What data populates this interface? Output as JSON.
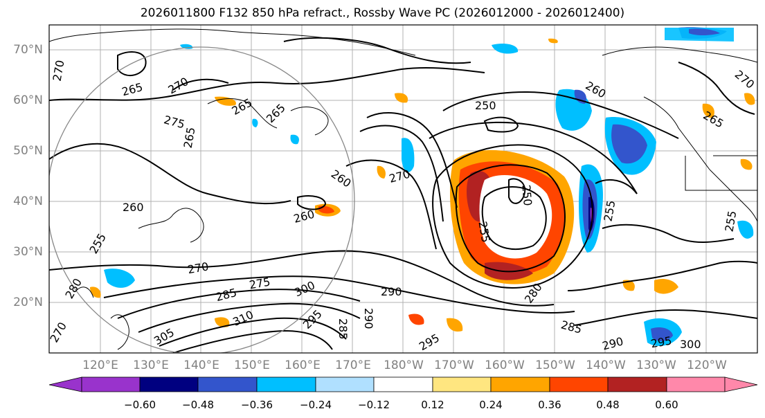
{
  "title": "2026011800 F132 850 hPa refract., Rossby Wave PC (2026012000 - 2026012400)",
  "lat_labels": [
    "70°N",
    "60°N",
    "50°N",
    "40°N",
    "30°N",
    "20°N"
  ],
  "lon_labels": [
    "120°E",
    "130°E",
    "140°E",
    "150°E",
    "160°E",
    "170°E",
    "180°W",
    "170°W",
    "160°W",
    "150°W",
    "140°W",
    "130°W",
    "120°W"
  ],
  "colorbar": {
    "ticks": [
      "−0.60",
      "−0.48",
      "−0.36",
      "−0.24",
      "−0.12",
      "0.12",
      "0.24",
      "0.36",
      "0.48",
      "0.60"
    ],
    "colors": [
      "#9933cc",
      "#000080",
      "#3355cc",
      "#00bfff",
      "#b0e0ff",
      "#ffffff",
      "#ffe680",
      "#ffa500",
      "#ff4500",
      "#b22222",
      "#ff88aa"
    ]
  },
  "contour_labels": [
    {
      "text": "270"
    },
    {
      "text": "265"
    },
    {
      "text": "270"
    },
    {
      "text": "265"
    },
    {
      "text": "265"
    },
    {
      "text": "275"
    },
    {
      "text": "260"
    },
    {
      "text": "260"
    },
    {
      "text": "250"
    },
    {
      "text": "270"
    },
    {
      "text": "260"
    },
    {
      "text": "260"
    },
    {
      "text": "255"
    },
    {
      "text": "255"
    },
    {
      "text": "250"
    },
    {
      "text": "270"
    },
    {
      "text": "275"
    },
    {
      "text": "285"
    },
    {
      "text": "300"
    },
    {
      "text": "310"
    },
    {
      "text": "305"
    },
    {
      "text": "295"
    },
    {
      "text": "290"
    },
    {
      "text": "285"
    },
    {
      "text": "290"
    },
    {
      "text": "280"
    },
    {
      "text": "285"
    },
    {
      "text": "290"
    },
    {
      "text": "295"
    },
    {
      "text": "300"
    },
    {
      "text": "295"
    },
    {
      "text": "265"
    },
    {
      "text": "270"
    },
    {
      "text": "255"
    },
    {
      "text": "265"
    },
    {
      "text": "255"
    },
    {
      "text": "280"
    },
    {
      "text": "270"
    }
  ]
}
